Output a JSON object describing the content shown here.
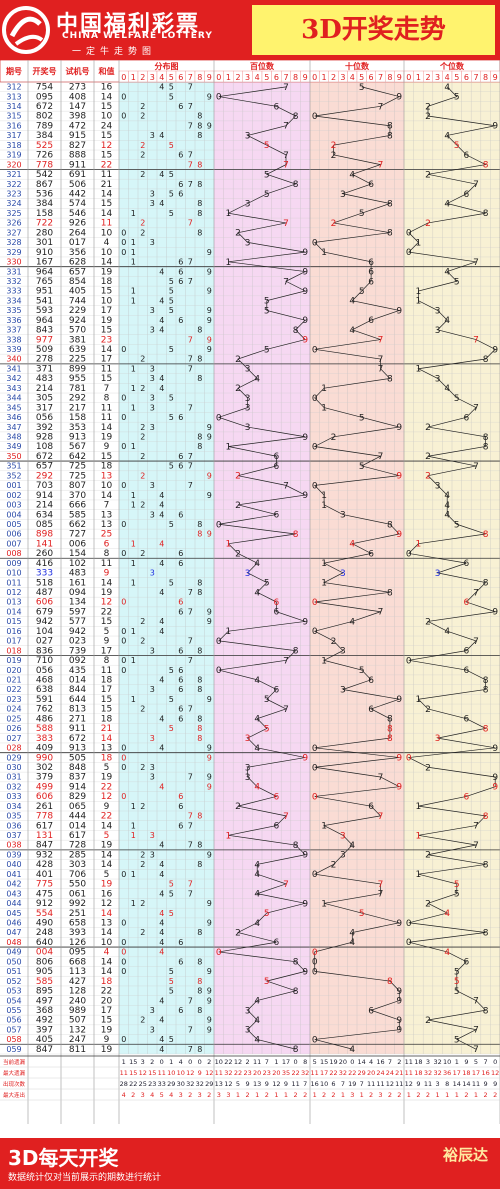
{
  "header": {
    "brand_cn": "中国福利彩票",
    "brand_en": "CHINA WELFARE LOTTERY",
    "motto": "一定牛走势图",
    "title": "3D开奖走势"
  },
  "table_headers": {
    "period": "期号",
    "draw": "开奖号",
    "test": "试机号",
    "sum": "和值",
    "dist": "分布图",
    "hundreds": "百位数",
    "tens": "十位数",
    "units": "个位数"
  },
  "footer": {
    "title": "3D每天开奖",
    "note": "数据统计仅对当前展示的期数进行统计",
    "author": "裕辰达"
  },
  "colors": {
    "red": "#e02020",
    "title_bg": "#fff36e",
    "dist_bg": "#d6f6f8",
    "hundreds_bg": "#f6d8f2",
    "tens_bg": "#fadcd4",
    "units_bg": "#f8f1d4",
    "highlight_blue": "#2030e0"
  },
  "stat_labels": [
    "当前遗漏",
    "最大遗漏",
    "出现次数",
    "最大连出"
  ],
  "chart_data": {
    "type": "table",
    "columns": [
      "期号",
      "开奖号",
      "试机号",
      "和值",
      "百位数",
      "十位数",
      "个位数"
    ],
    "rows": [
      [
        "312",
        "754",
        "273",
        "16"
      ],
      [
        "313",
        "095",
        "408",
        "14"
      ],
      [
        "314",
        "672",
        "147",
        "15"
      ],
      [
        "315",
        "802",
        "398",
        "10"
      ],
      [
        "316",
        "789",
        "472",
        "24"
      ],
      [
        "317",
        "384",
        "915",
        "15"
      ],
      [
        "318",
        "525",
        "827",
        "12"
      ],
      [
        "319",
        "726",
        "888",
        "15"
      ],
      [
        "320",
        "778",
        "911",
        "22"
      ],
      [
        "321",
        "542",
        "691",
        "11"
      ],
      [
        "322",
        "867",
        "506",
        "21"
      ],
      [
        "323",
        "536",
        "442",
        "14"
      ],
      [
        "324",
        "384",
        "574",
        "15"
      ],
      [
        "325",
        "158",
        "546",
        "14"
      ],
      [
        "326",
        "722",
        "926",
        "11"
      ],
      [
        "327",
        "280",
        "264",
        "10"
      ],
      [
        "328",
        "301",
        "017",
        "4"
      ],
      [
        "329",
        "910",
        "356",
        "10"
      ],
      [
        "330",
        "167",
        "628",
        "14"
      ],
      [
        "331",
        "964",
        "657",
        "19"
      ],
      [
        "332",
        "765",
        "854",
        "18"
      ],
      [
        "333",
        "951",
        "405",
        "15"
      ],
      [
        "334",
        "541",
        "744",
        "10"
      ],
      [
        "335",
        "593",
        "229",
        "17"
      ],
      [
        "336",
        "964",
        "924",
        "19"
      ],
      [
        "337",
        "843",
        "570",
        "15"
      ],
      [
        "338",
        "977",
        "381",
        "23"
      ],
      [
        "339",
        "509",
        "639",
        "14"
      ],
      [
        "340",
        "278",
        "225",
        "17"
      ],
      [
        "341",
        "371",
        "899",
        "11"
      ],
      [
        "342",
        "483",
        "955",
        "15"
      ],
      [
        "343",
        "214",
        "781",
        "7"
      ],
      [
        "344",
        "305",
        "292",
        "8"
      ],
      [
        "345",
        "317",
        "217",
        "11"
      ],
      [
        "346",
        "056",
        "158",
        "11"
      ],
      [
        "347",
        "392",
        "353",
        "14"
      ],
      [
        "348",
        "928",
        "913",
        "19"
      ],
      [
        "349",
        "108",
        "567",
        "9"
      ],
      [
        "350",
        "672",
        "642",
        "15"
      ],
      [
        "351",
        "657",
        "725",
        "18"
      ],
      [
        "352",
        "292",
        "725",
        "13"
      ],
      [
        "001",
        "703",
        "807",
        "10"
      ],
      [
        "002",
        "914",
        "370",
        "14"
      ],
      [
        "003",
        "214",
        "666",
        "7"
      ],
      [
        "004",
        "634",
        "585",
        "13"
      ],
      [
        "005",
        "085",
        "662",
        "13"
      ],
      [
        "006",
        "898",
        "727",
        "25"
      ],
      [
        "007",
        "141",
        "006",
        "6"
      ],
      [
        "008",
        "260",
        "154",
        "8"
      ],
      [
        "009",
        "416",
        "102",
        "11"
      ],
      [
        "010",
        "333",
        "483",
        "9"
      ],
      [
        "011",
        "518",
        "161",
        "14"
      ],
      [
        "012",
        "487",
        "094",
        "19"
      ],
      [
        "013",
        "606",
        "134",
        "12"
      ],
      [
        "014",
        "679",
        "597",
        "22"
      ],
      [
        "015",
        "942",
        "577",
        "15"
      ],
      [
        "016",
        "104",
        "942",
        "5"
      ],
      [
        "017",
        "027",
        "023",
        "9"
      ],
      [
        "018",
        "836",
        "739",
        "17"
      ],
      [
        "019",
        "710",
        "092",
        "8"
      ],
      [
        "020",
        "056",
        "435",
        "11"
      ],
      [
        "021",
        "468",
        "014",
        "18"
      ],
      [
        "022",
        "638",
        "844",
        "17"
      ],
      [
        "023",
        "591",
        "644",
        "15"
      ],
      [
        "024",
        "762",
        "813",
        "15"
      ],
      [
        "025",
        "486",
        "271",
        "18"
      ],
      [
        "026",
        "588",
        "911",
        "21"
      ],
      [
        "027",
        "383",
        "672",
        "14"
      ],
      [
        "028",
        "409",
        "913",
        "13"
      ],
      [
        "029",
        "990",
        "505",
        "18"
      ],
      [
        "030",
        "302",
        "848",
        "5"
      ],
      [
        "031",
        "379",
        "837",
        "19"
      ],
      [
        "032",
        "499",
        "914",
        "22"
      ],
      [
        "033",
        "606",
        "829",
        "12"
      ],
      [
        "034",
        "261",
        "065",
        "9"
      ],
      [
        "035",
        "778",
        "444",
        "22"
      ],
      [
        "036",
        "617",
        "014",
        "14"
      ],
      [
        "037",
        "131",
        "617",
        "5"
      ],
      [
        "038",
        "847",
        "728",
        "19"
      ],
      [
        "039",
        "932",
        "285",
        "14"
      ],
      [
        "040",
        "428",
        "303",
        "14"
      ],
      [
        "041",
        "401",
        "706",
        "5"
      ],
      [
        "042",
        "775",
        "550",
        "19"
      ],
      [
        "043",
        "475",
        "061",
        "16"
      ],
      [
        "044",
        "912",
        "992",
        "12"
      ],
      [
        "045",
        "554",
        "251",
        "14"
      ],
      [
        "046",
        "490",
        "658",
        "13"
      ],
      [
        "047",
        "248",
        "393",
        "14"
      ],
      [
        "048",
        "640",
        "126",
        "10"
      ],
      [
        "049",
        "004",
        "095",
        "4"
      ],
      [
        "050",
        "806",
        "668",
        "14"
      ],
      [
        "051",
        "905",
        "113",
        "14"
      ],
      [
        "052",
        "585",
        "427",
        "18"
      ],
      [
        "053",
        "895",
        "128",
        "22"
      ],
      [
        "054",
        "497",
        "240",
        "20"
      ],
      [
        "055",
        "368",
        "989",
        "17"
      ],
      [
        "056",
        "492",
        "507",
        "15"
      ],
      [
        "057",
        "397",
        "132",
        "19"
      ],
      [
        "058",
        "405",
        "247",
        "9"
      ],
      [
        "059",
        "847",
        "811",
        "19"
      ]
    ],
    "red_rows": [
      "320",
      "330",
      "340",
      "350",
      "008",
      "018",
      "028",
      "038",
      "048",
      "058"
    ],
    "stats": {
      "hundreds": [
        [
          10,
          22,
          12,
          2,
          11,
          7,
          1,
          17,
          0,
          8
        ],
        [
          11,
          32,
          22,
          23,
          20,
          23,
          20,
          35,
          22,
          32
        ],
        [
          13,
          12,
          5,
          9,
          13,
          9,
          12,
          9,
          11,
          7
        ],
        [
          3,
          3,
          1,
          2,
          1,
          2,
          1,
          1,
          2,
          2
        ]
      ],
      "tens": [
        [
          5,
          15,
          19,
          20,
          0,
          14,
          4,
          16,
          7,
          2
        ],
        [
          11,
          17,
          22,
          32,
          22,
          29,
          20,
          24,
          24,
          21
        ],
        [
          16,
          10,
          6,
          7,
          19,
          7,
          11,
          11,
          12,
          11
        ],
        [
          1,
          2,
          2,
          1,
          3,
          1,
          2,
          3,
          2,
          2
        ]
      ],
      "units": [
        [
          11,
          18,
          3,
          32,
          10,
          1,
          9,
          5,
          7,
          0
        ],
        [
          11,
          18,
          32,
          32,
          36,
          17,
          18,
          17,
          16,
          12
        ],
        [
          12,
          9,
          11,
          3,
          8,
          14,
          14,
          11,
          9,
          9
        ],
        [
          1,
          2,
          2,
          1,
          1,
          1,
          2,
          1,
          2,
          2
        ]
      ],
      "dist": [
        [
          1,
          15,
          3,
          2,
          0,
          1,
          4,
          0,
          0,
          2
        ],
        [
          11,
          15,
          12,
          15,
          11,
          10,
          10,
          12,
          9,
          12
        ],
        [
          28,
          22,
          25,
          23,
          33,
          29,
          30,
          32,
          32,
          29
        ],
        [
          4,
          2,
          3,
          4,
          5,
          4,
          3,
          2,
          3,
          2
        ]
      ]
    }
  }
}
